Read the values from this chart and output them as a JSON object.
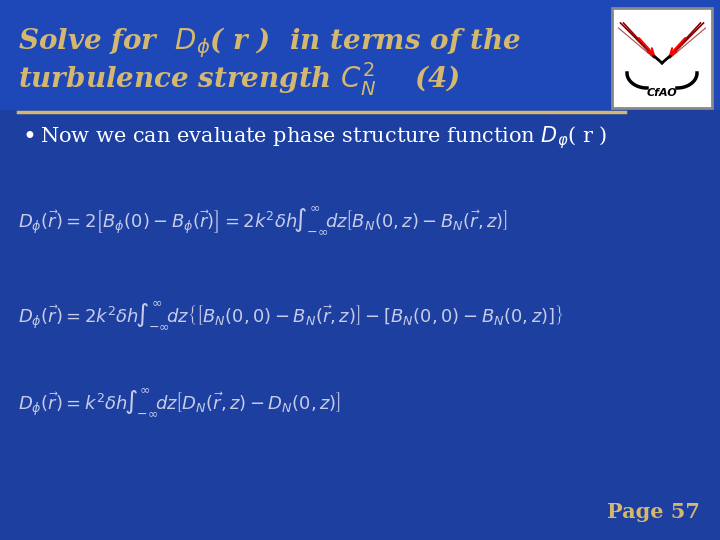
{
  "bg_color": "#1c3fa0",
  "title_bg_color": "#1c3fa0",
  "title_text_line1": "Solve for  $D_{\\phi}$( r )  in terms of the",
  "title_text_line2": "turbulence strength $C_N^2$    (4)",
  "title_color": "#d4b870",
  "title_fontsize": 20,
  "separator_color": "#d4b870",
  "bullet_text": "Now we can evaluate phase structure function $D_{\\varphi}$( r )",
  "bullet_color": "white",
  "bullet_fontsize": 15,
  "eq1": "$D_{\\phi}(\\vec{r}) = 2\\left[B_{\\phi}(0) - B_{\\phi}(\\vec{r})\\right] = 2k^2\\delta h\\!\\int_{-\\infty}^{\\infty}\\! dz\\left[B_N(0,z) - B_N(\\vec{r},z)\\right]$",
  "eq2": "$D_{\\phi}(\\vec{r}) = 2k^2\\delta h\\!\\int_{-\\infty}^{\\infty}\\! dz\\left\\{\\left[B_N(0,0) - B_N(\\vec{r},z)\\right] - \\left[B_N(0,0) - B_N(0,z)\\right]\\right\\}$",
  "eq3": "$D_{\\phi}(\\vec{r}) = k^2\\delta h\\!\\int_{-\\infty}^{\\infty}\\! dz\\left[D_N(\\vec{r},z) - D_N(0,z)\\right]$",
  "eq_color": "#c8cce8",
  "eq_fontsize": 13,
  "page_text": "Page 57",
  "page_color": "#d4b870",
  "page_fontsize": 15
}
